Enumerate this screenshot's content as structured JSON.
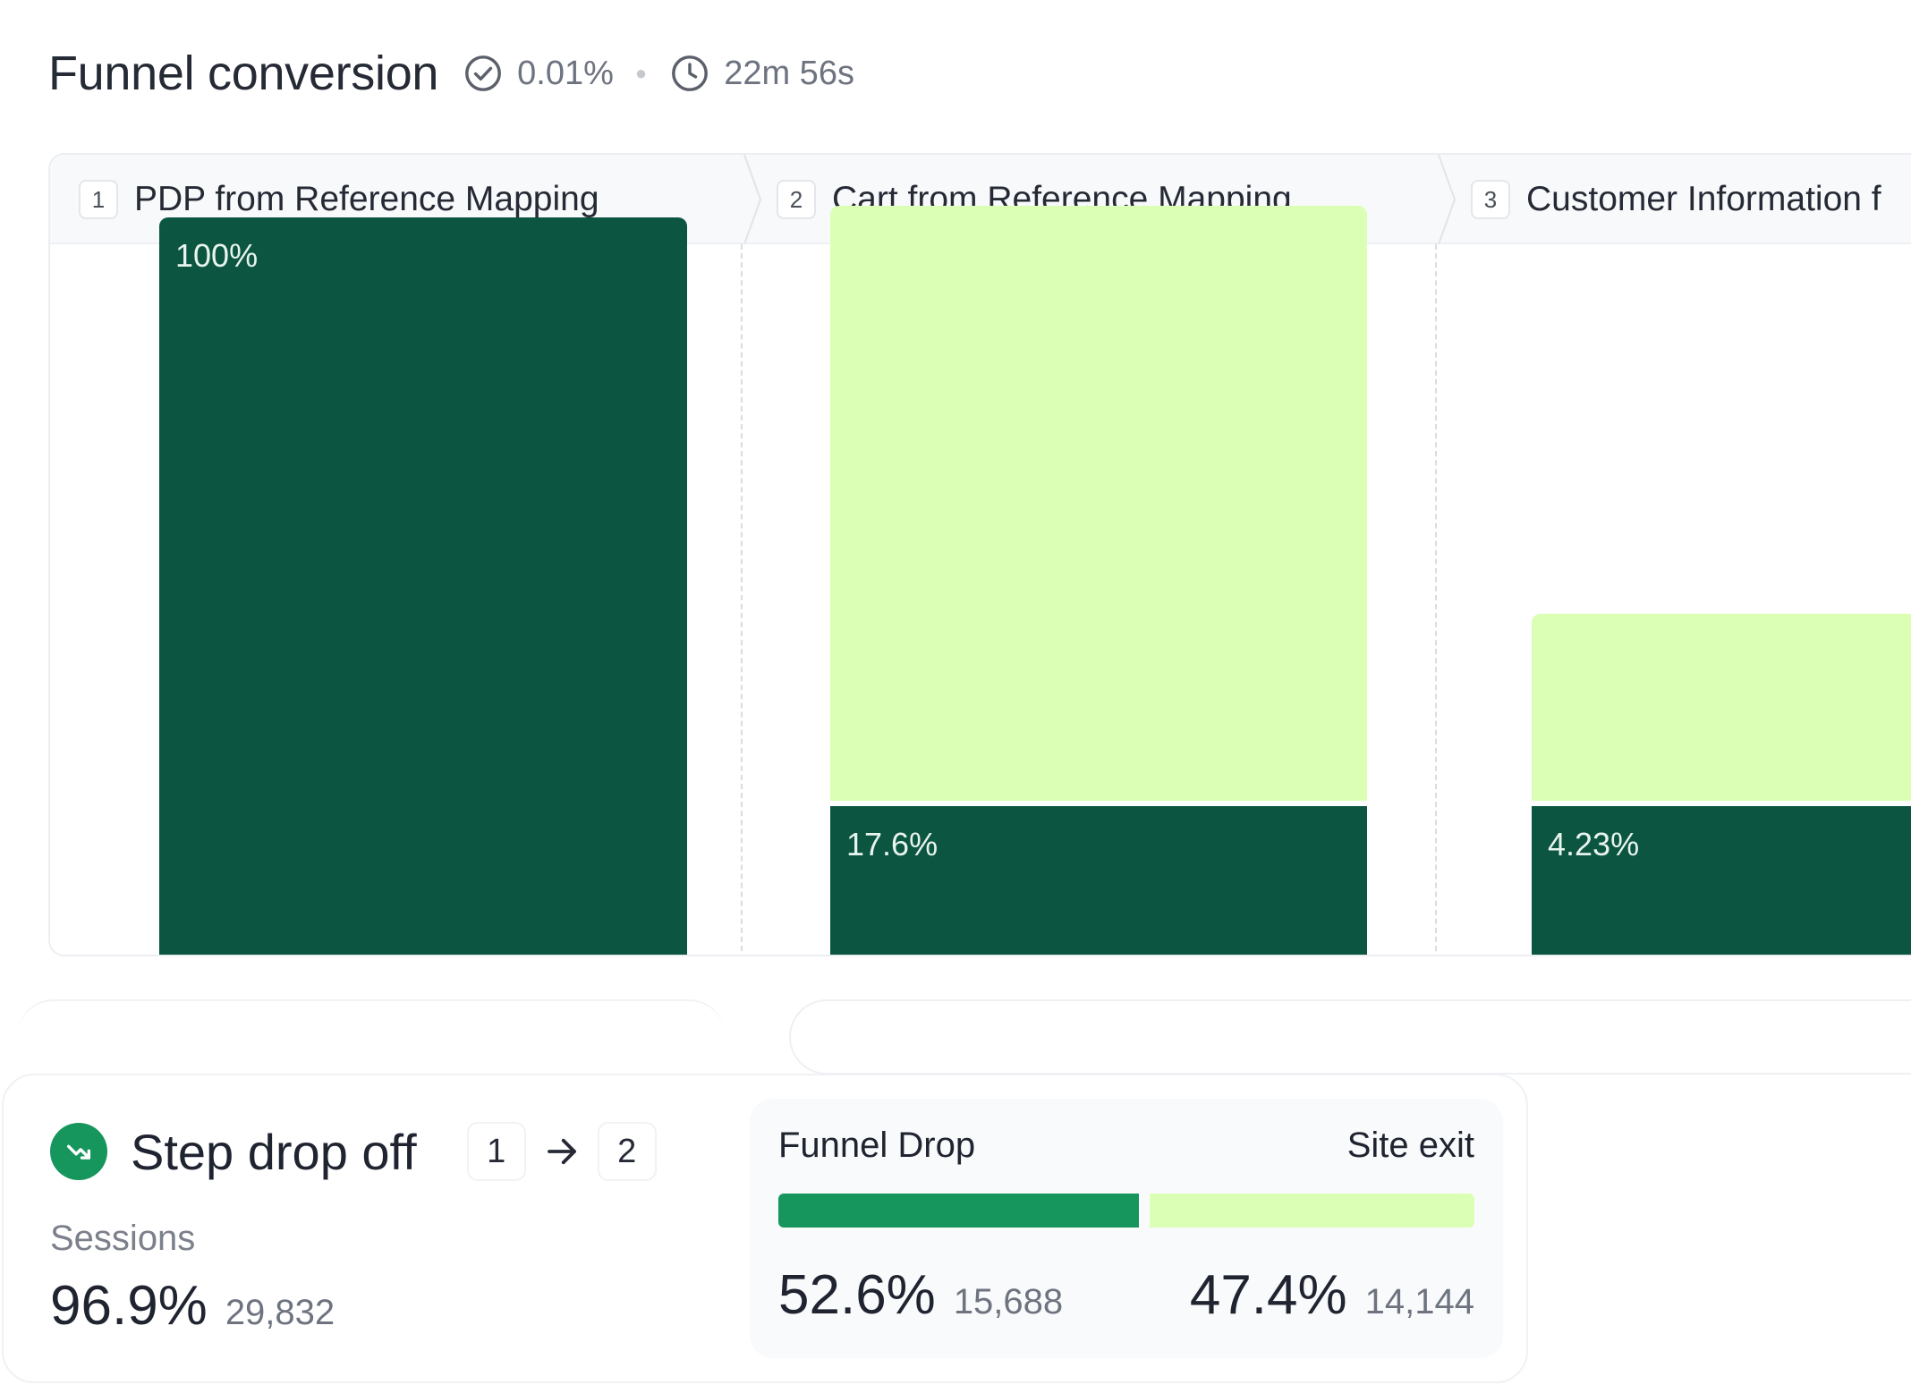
{
  "header": {
    "title": "Funnel conversion",
    "conversion_rate": "0.01%",
    "duration": "22m 56s",
    "icons": [
      "check-circle-icon",
      "clock-icon"
    ]
  },
  "steps": [
    {
      "number": "1",
      "label": "PDP from Reference Mapping"
    },
    {
      "number": "2",
      "label": "Cart from Reference Mapping"
    },
    {
      "number": "3",
      "label": "Customer Information f"
    }
  ],
  "chart_data": {
    "type": "bar",
    "categories": [
      "PDP from Reference Mapping",
      "Cart from Reference Mapping",
      "Customer Information f"
    ],
    "series": [
      {
        "values": [
          100,
          17.6,
          4.23
        ]
      },
      {
        "values": [
          null,
          81,
          26
        ]
      }
    ],
    "data_labels": [
      "100%",
      "17.6%",
      "4.23%"
    ],
    "ylim": [
      0,
      100
    ],
    "colors": {
      "converted": "#0b5541",
      "dropped": "#dbffb4"
    }
  },
  "drop_off": {
    "title": "Step drop off",
    "from_step": "1",
    "to_step": "2",
    "sessions_label": "Sessions",
    "sessions_percent": "96.9%",
    "sessions_count": "29,832",
    "funnel_drop_label": "Funnel Drop",
    "site_exit_label": "Site exit",
    "funnel_drop_percent": "52.6%",
    "funnel_drop_count": "15,688",
    "site_exit_percent": "47.4%",
    "site_exit_count": "14,144",
    "funnel_drop_fraction": 0.526,
    "colors": {
      "funnel_drop": "#16965d",
      "site_exit": "#dbffb4",
      "icon_bg": "#16965d"
    }
  }
}
